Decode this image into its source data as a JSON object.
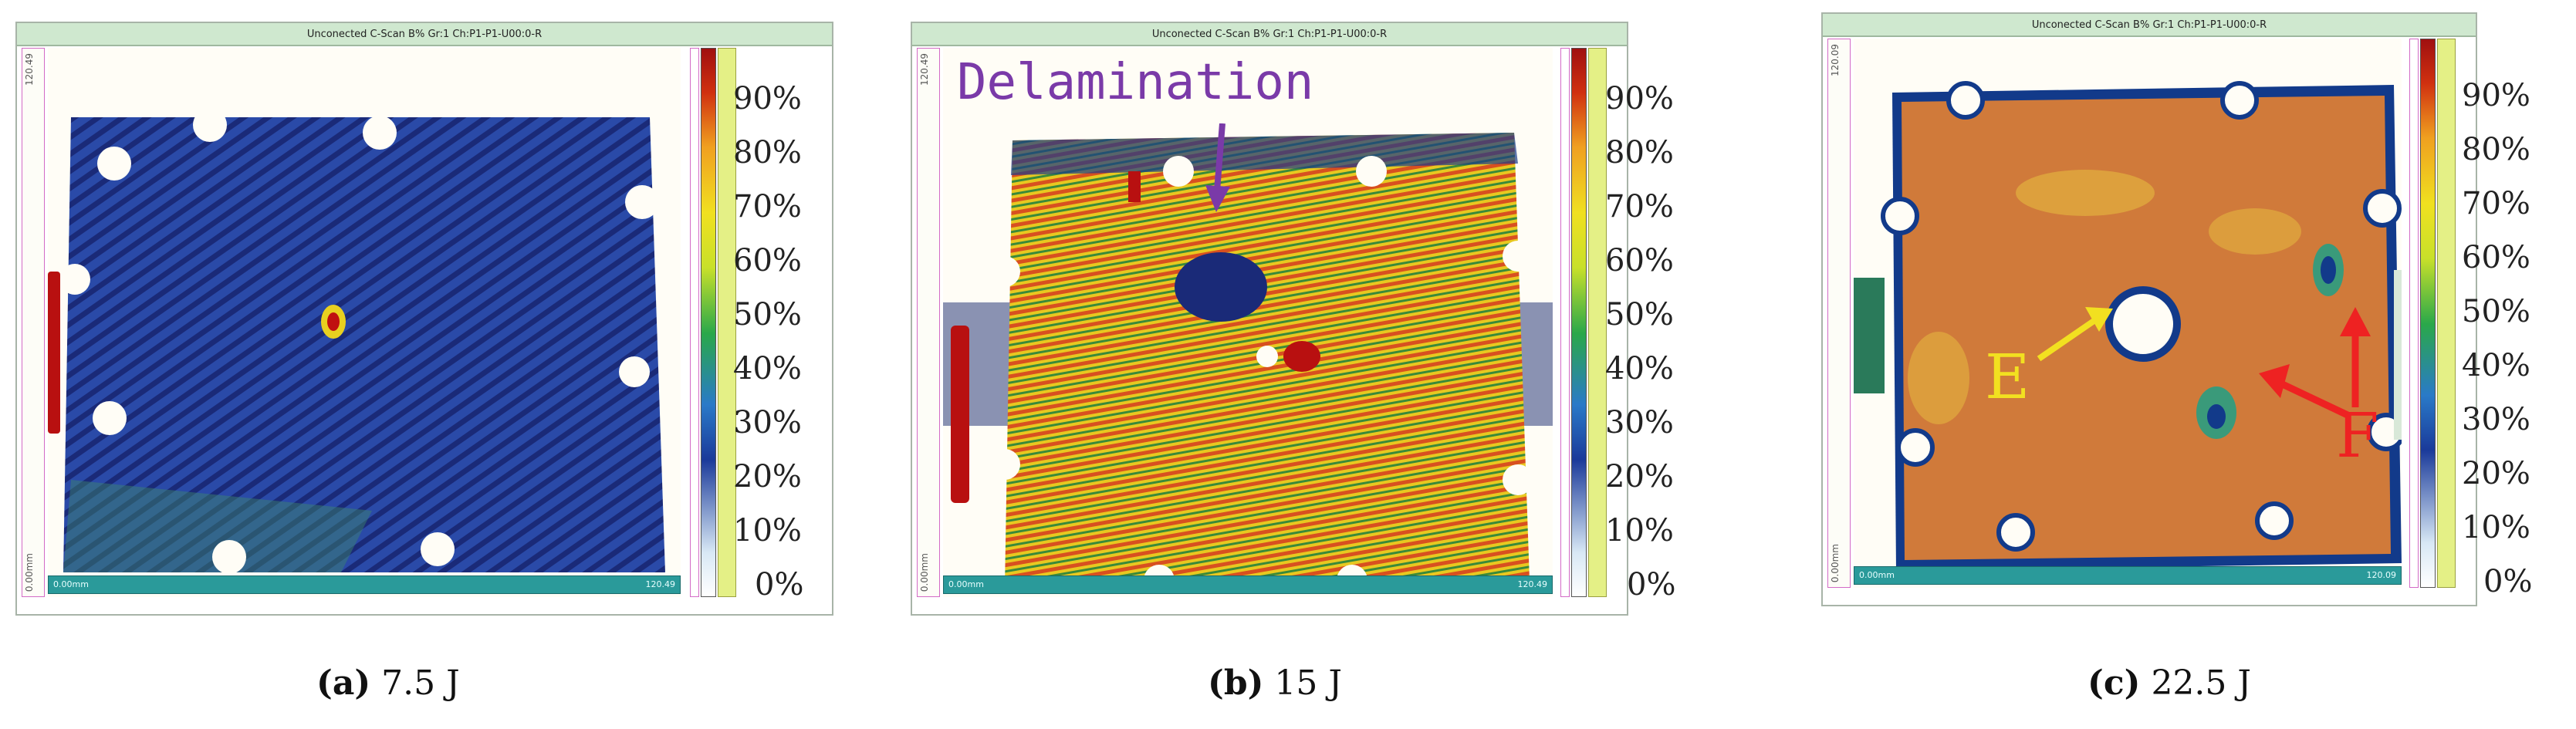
{
  "panels": [
    {
      "id": "a",
      "window_title": "Unconected C-Scan B% Gr:1 Ch:P1-P1-U00:0-R",
      "left_ruler_top": "120.49",
      "left_ruler_bottom": "0.00mm",
      "bottom_ruler_left": "0.00mm",
      "bottom_ruler_right": "120.49",
      "caption_letter": "(a)",
      "caption_value": "7.5 J"
    },
    {
      "id": "b",
      "window_title": "Unconected C-Scan B% Gr:1 Ch:P1-P1-U00:0-R",
      "left_ruler_top": "120.49",
      "left_ruler_bottom": "0.00mm",
      "bottom_ruler_left": "0.00mm",
      "bottom_ruler_right": "120.49",
      "caption_letter": "(b)",
      "caption_value": "15 J",
      "annotation": "Delamination"
    },
    {
      "id": "c",
      "window_title": "Unconected C-Scan B% Gr:1 Ch:P1-P1-U00:0-R",
      "left_ruler_top": "120.09",
      "left_ruler_bottom": "0.00mm",
      "bottom_ruler_left": "0.00mm",
      "bottom_ruler_right": "120.09",
      "caption_letter": "(c)",
      "caption_value": "22.5 J",
      "annotation_e": "E",
      "annotation_f": "F"
    }
  ],
  "colorbar_ticks": [
    "90%",
    "80%",
    "70%",
    "60%",
    "50%",
    "40%",
    "30%",
    "20%",
    "10%",
    "0%"
  ],
  "colors": {
    "annotation_delamination": "#7a3aa8",
    "annotation_e": "#f2e020",
    "annotation_f": "#ee2222",
    "window_title_bg": "#cfe8cf",
    "bottom_ruler_bg": "#2a9a9a"
  }
}
